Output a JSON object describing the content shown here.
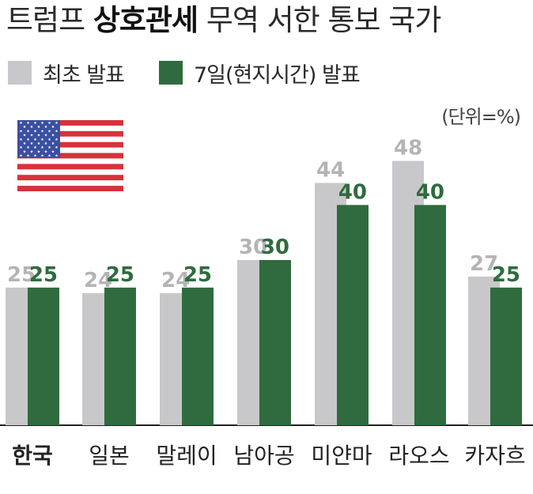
{
  "title": {
    "before": "트럼프 ",
    "bold": "상호관세",
    "after": " 무역 서한 통보 국가"
  },
  "legend": [
    {
      "label": "최초 발표",
      "color": "#c8c8ca"
    },
    {
      "label": "7일(현지시간) 발표",
      "color": "#2f6b3e"
    }
  ],
  "unit": "(단위=%)",
  "flag_icon": "us-flag-icon",
  "chart_data": {
    "type": "bar",
    "categories": [
      "한국",
      "일본",
      "말레이",
      "남아공",
      "미얀마",
      "라오스",
      "카자흐"
    ],
    "series": [
      {
        "name": "최초 발표",
        "values": [
          25,
          24,
          24,
          30,
          44,
          48,
          27
        ],
        "color": "#c8c8ca",
        "label_color": "#b4b4b6"
      },
      {
        "name": "7일(현지시간) 발표",
        "values": [
          25,
          25,
          25,
          30,
          40,
          40,
          25
        ],
        "color": "#2f6b3e",
        "label_color": "#2f6b3e"
      }
    ],
    "highlight_category": "한국",
    "ylim": [
      0,
      60
    ],
    "grid": false
  }
}
